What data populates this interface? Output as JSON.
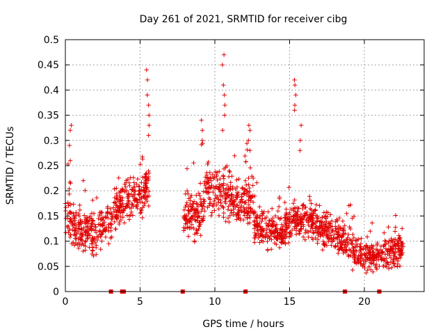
{
  "chart_data": {
    "type": "scatter",
    "title": "Day 261 of 2021, SRMTID for receiver cibg",
    "xlabel": "GPS time / hours",
    "ylabel": "SRMTID / TECUs",
    "xlim": [
      0,
      24
    ],
    "ylim": [
      0,
      0.5
    ],
    "xticks": [
      0,
      5,
      10,
      15,
      20
    ],
    "xtick_labels": [
      "0",
      "5",
      "10",
      "15",
      "20"
    ],
    "yticks": [
      0,
      0.05,
      0.1,
      0.15,
      0.2,
      0.25,
      0.3,
      0.35,
      0.4,
      0.45,
      0.5
    ],
    "ytick_labels": [
      "0",
      "0.05",
      "0.1",
      "0.15",
      "0.2",
      "0.25",
      "0.3",
      "0.35",
      "0.4",
      "0.45",
      "0.5"
    ],
    "grid": true,
    "series": [
      {
        "name": "SRMTID",
        "marker": "plus",
        "color": "#e00000",
        "segments": [
          {
            "x_range": [
              0.0,
              5.6
            ],
            "profile": [
              [
                0.0,
                0.15
              ],
              [
                0.5,
                0.13
              ],
              [
                1.0,
                0.12
              ],
              [
                1.5,
                0.12
              ],
              [
                2.0,
                0.11
              ],
              [
                2.5,
                0.13
              ],
              [
                3.0,
                0.14
              ],
              [
                3.5,
                0.16
              ],
              [
                4.0,
                0.18
              ],
              [
                4.5,
                0.18
              ],
              [
                5.0,
                0.19
              ],
              [
                5.6,
                0.22
              ]
            ],
            "spread": 0.06
          },
          {
            "x_range": [
              7.9,
              12.6
            ],
            "profile": [
              [
                7.9,
                0.15
              ],
              [
                8.5,
                0.15
              ],
              [
                9.0,
                0.16
              ],
              [
                9.5,
                0.2
              ],
              [
                10.0,
                0.2
              ],
              [
                10.5,
                0.2
              ],
              [
                11.0,
                0.19
              ],
              [
                11.5,
                0.17
              ],
              [
                12.0,
                0.18
              ],
              [
                12.6,
                0.17
              ]
            ],
            "spread": 0.07
          },
          {
            "x_range": [
              12.6,
              22.6
            ],
            "profile": [
              [
                12.6,
                0.13
              ],
              [
                13.5,
                0.12
              ],
              [
                14.5,
                0.12
              ],
              [
                15.5,
                0.14
              ],
              [
                16.0,
                0.15
              ],
              [
                17.0,
                0.13
              ],
              [
                18.0,
                0.11
              ],
              [
                19.0,
                0.09
              ],
              [
                20.0,
                0.07
              ],
              [
                21.0,
                0.07
              ],
              [
                22.0,
                0.08
              ],
              [
                22.6,
                0.08
              ]
            ],
            "spread": 0.05
          }
        ],
        "peaks": [
          {
            "x": 0.35,
            "values": [
              0.32,
              0.33,
              0.29,
              0.26
            ]
          },
          {
            "x": 5.5,
            "values": [
              0.44,
              0.42,
              0.39,
              0.37,
              0.35,
              0.33,
              0.31
            ]
          },
          {
            "x": 9.2,
            "values": [
              0.34,
              0.32,
              0.3
            ]
          },
          {
            "x": 10.6,
            "values": [
              0.47,
              0.45,
              0.41,
              0.39,
              0.37,
              0.35,
              0.32
            ]
          },
          {
            "x": 12.3,
            "values": [
              0.33,
              0.32,
              0.3,
              0.28
            ]
          },
          {
            "x": 15.4,
            "values": [
              0.42,
              0.41,
              0.39,
              0.37,
              0.36
            ]
          },
          {
            "x": 15.7,
            "values": [
              0.33,
              0.3,
              0.28
            ]
          }
        ]
      }
    ],
    "baseline_markers": {
      "y": 0,
      "x": [
        3.05,
        3.8,
        3.9,
        7.85,
        12.05,
        18.7,
        21.0
      ]
    }
  }
}
